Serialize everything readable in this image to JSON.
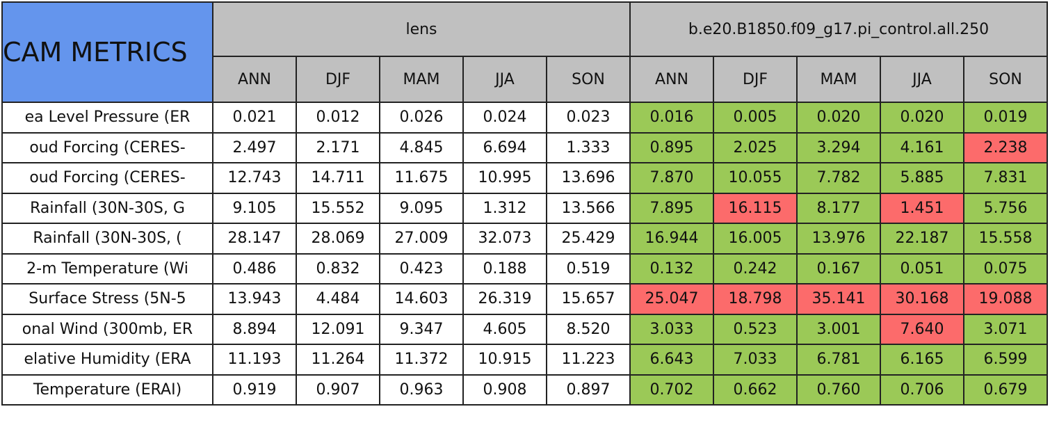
{
  "header": {
    "title": "CAM METRICS",
    "groups": [
      "lens",
      "b.e20.B1850.f09_g17.pi_control.all.250"
    ],
    "seasons": [
      [
        "ANN",
        "DJF",
        "MAM",
        "JJA",
        "SON"
      ],
      [
        "ANN",
        "DJF",
        "MAM",
        "JJA",
        "SON"
      ]
    ]
  },
  "table": {
    "rows": [
      {
        "label": "ea Level Pressure (ER",
        "values": [
          "0.021",
          "0.012",
          "0.026",
          "0.024",
          "0.023",
          "0.016",
          "0.005",
          "0.020",
          "0.020",
          "0.019"
        ],
        "colors": [
          "#9bc957",
          "#9bc957",
          "#9bc957",
          "#9bc957",
          "#9bc957"
        ]
      },
      {
        "label": "oud Forcing (CERES-",
        "values": [
          "2.497",
          "2.171",
          "4.845",
          "6.694",
          "1.333",
          "0.895",
          "2.025",
          "3.294",
          "4.161",
          "2.238"
        ],
        "colors": [
          "#9bc957",
          "#9bc957",
          "#9bc957",
          "#9bc957",
          "#fc6b6b"
        ]
      },
      {
        "label": "oud Forcing (CERES-",
        "values": [
          "12.743",
          "14.711",
          "11.675",
          "10.995",
          "13.696",
          "7.870",
          "10.055",
          "7.782",
          "5.885",
          "7.831"
        ],
        "colors": [
          "#9bc957",
          "#9bc957",
          "#9bc957",
          "#9bc957",
          "#9bc957"
        ]
      },
      {
        "label": "Rainfall (30N-30S, G",
        "values": [
          "9.105",
          "15.552",
          "9.095",
          "1.312",
          "13.566",
          "7.895",
          "16.115",
          "8.177",
          "1.451",
          "5.756"
        ],
        "colors": [
          "#9bc957",
          "#fc6b6b",
          "#9bc957",
          "#fc6b6b",
          "#9bc957"
        ]
      },
      {
        "label": "Rainfall (30N-30S, (",
        "values": [
          "28.147",
          "28.069",
          "27.009",
          "32.073",
          "25.429",
          "16.944",
          "16.005",
          "13.976",
          "22.187",
          "15.558"
        ],
        "colors": [
          "#9bc957",
          "#9bc957",
          "#9bc957",
          "#9bc957",
          "#9bc957"
        ]
      },
      {
        "label": "2-m Temperature (Wi",
        "values": [
          "0.486",
          "0.832",
          "0.423",
          "0.188",
          "0.519",
          "0.132",
          "0.242",
          "0.167",
          "0.051",
          "0.075"
        ],
        "colors": [
          "#9bc957",
          "#9bc957",
          "#9bc957",
          "#9bc957",
          "#9bc957"
        ]
      },
      {
        "label": "Surface Stress (5N-5",
        "values": [
          "13.943",
          "4.484",
          "14.603",
          "26.319",
          "15.657",
          "25.047",
          "18.798",
          "35.141",
          "30.168",
          "19.088"
        ],
        "colors": [
          "#fc6b6b",
          "#fc6b6b",
          "#fc6b6b",
          "#fc6b6b",
          "#fc6b6b"
        ]
      },
      {
        "label": "onal Wind (300mb, ER",
        "values": [
          "8.894",
          "12.091",
          "9.347",
          "4.605",
          "8.520",
          "3.033",
          "0.523",
          "3.001",
          "7.640",
          "3.071"
        ],
        "colors": [
          "#9bc957",
          "#9bc957",
          "#9bc957",
          "#fc6b6b",
          "#9bc957"
        ]
      },
      {
        "label": "elative Humidity (ERA",
        "values": [
          "11.193",
          "11.264",
          "11.372",
          "10.915",
          "11.223",
          "6.643",
          "7.033",
          "6.781",
          "6.165",
          "6.599"
        ],
        "colors": [
          "#9bc957",
          "#9bc957",
          "#9bc957",
          "#9bc957",
          "#9bc957"
        ]
      },
      {
        "label": "Temperature (ERAI)",
        "values": [
          "0.919",
          "0.907",
          "0.963",
          "0.908",
          "0.897",
          "0.702",
          "0.662",
          "0.760",
          "0.706",
          "0.679"
        ],
        "colors": [
          "#9bc957",
          "#9bc957",
          "#9bc957",
          "#9bc957",
          "#9bc957"
        ]
      }
    ]
  }
}
